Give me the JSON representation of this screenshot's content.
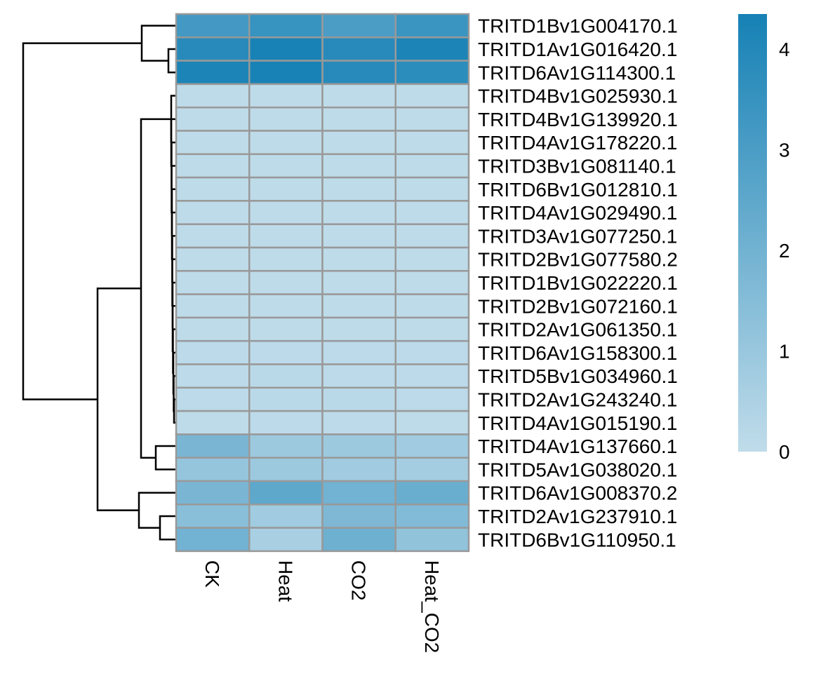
{
  "chart_data": {
    "type": "heatmap",
    "title": "",
    "xlabel": "",
    "ylabel": "",
    "columns": [
      "CK",
      "Heat",
      "CO2",
      "Heat_CO2"
    ],
    "rows": [
      "TRITD1Bv1G004170.1",
      "TRITD1Av1G016420.1",
      "TRITD6Av1G114300.1",
      "TRITD4Bv1G025930.1",
      "TRITD4Bv1G139920.1",
      "TRITD4Av1G178220.1",
      "TRITD3Bv1G081140.1",
      "TRITD6Bv1G012810.1",
      "TRITD4Av1G029490.1",
      "TRITD3Av1G077250.1",
      "TRITD2Bv1G077580.2",
      "TRITD1Bv1G022220.1",
      "TRITD2Bv1G072160.1",
      "TRITD2Av1G061350.1",
      "TRITD6Av1G158300.1",
      "TRITD5Bv1G034960.1",
      "TRITD2Av1G243240.1",
      "TRITD4Av1G015190.1",
      "TRITD4Av1G137660.1",
      "TRITD5Av1G038020.1",
      "TRITD6Av1G008370.2",
      "TRITD2Av1G237910.1",
      "TRITD6Bv1G110950.1"
    ],
    "values": [
      [
        3.2,
        3.5,
        3.0,
        3.4
      ],
      [
        3.9,
        4.3,
        3.9,
        4.2
      ],
      [
        4.2,
        4.3,
        3.9,
        3.8
      ],
      [
        0.05,
        0.05,
        0.05,
        0.05
      ],
      [
        0.05,
        0.05,
        0.05,
        0.05
      ],
      [
        0.05,
        0.05,
        0.05,
        0.05
      ],
      [
        0.05,
        0.05,
        0.05,
        0.05
      ],
      [
        0.05,
        0.05,
        0.05,
        0.05
      ],
      [
        0.05,
        0.05,
        0.05,
        0.05
      ],
      [
        0.05,
        0.05,
        0.05,
        0.05
      ],
      [
        0.05,
        0.05,
        0.05,
        0.05
      ],
      [
        0.05,
        0.05,
        0.05,
        0.05
      ],
      [
        0.05,
        0.05,
        0.05,
        0.05
      ],
      [
        0.05,
        0.05,
        0.05,
        0.05
      ],
      [
        0.1,
        0.1,
        0.1,
        0.1
      ],
      [
        0.1,
        0.15,
        0.1,
        0.1
      ],
      [
        0.1,
        0.15,
        0.15,
        0.1
      ],
      [
        0.05,
        0.1,
        0.1,
        0.05
      ],
      [
        1.8,
        0.9,
        0.9,
        0.8
      ],
      [
        1.1,
        0.9,
        0.8,
        0.7
      ],
      [
        1.8,
        2.5,
        2.0,
        2.2
      ],
      [
        1.4,
        0.8,
        1.7,
        1.6
      ],
      [
        2.0,
        0.6,
        2.1,
        1.2
      ]
    ],
    "colorbar": {
      "min": 0,
      "max": 4.35,
      "ticks": [
        "0",
        "1",
        "2",
        "3",
        "4"
      ],
      "low_color": "#c0dcea",
      "high_color": "#1681b5"
    },
    "row_dendrogram": true,
    "cell_border_color": "#999999"
  }
}
